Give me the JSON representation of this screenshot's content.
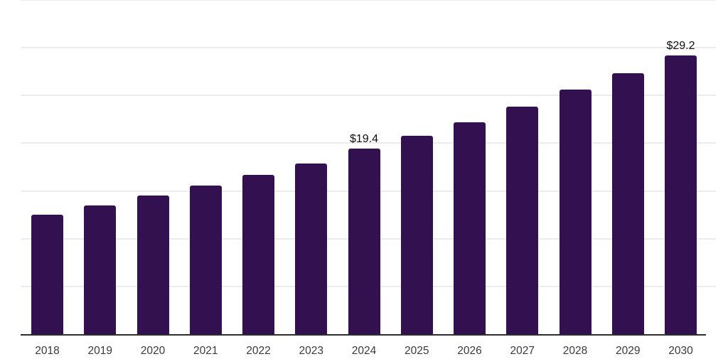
{
  "chart_data": {
    "type": "bar",
    "title": "",
    "xlabel": "",
    "ylabel": "",
    "categories": [
      "2018",
      "2019",
      "2020",
      "2021",
      "2022",
      "2023",
      "2024",
      "2025",
      "2026",
      "2027",
      "2028",
      "2029",
      "2030"
    ],
    "values": [
      12.5,
      13.5,
      14.5,
      15.6,
      16.7,
      17.9,
      19.4,
      20.8,
      22.2,
      23.8,
      25.6,
      27.3,
      29.2
    ],
    "value_labels": {
      "2024": "$19.4",
      "2030": "$29.2"
    },
    "ylim": [
      0,
      35
    ],
    "grid_step": 5,
    "grid": "horizontal-faint",
    "legend": "none",
    "y_tick_labels_visible": false,
    "colors": {
      "bar": "#331150",
      "axis": "#2d2d2d",
      "gridline": "#ececec",
      "tick_label": "#3a3a3a",
      "value_label": "#0f0f0f",
      "background": "#ffffff"
    }
  }
}
